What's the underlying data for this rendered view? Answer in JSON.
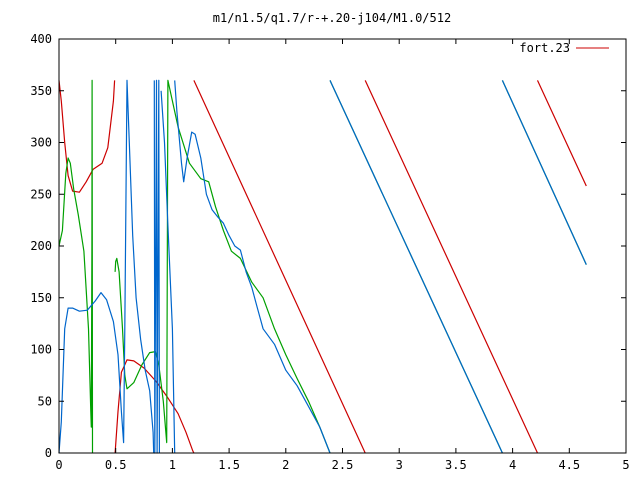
{
  "chart_data": {
    "type": "line",
    "title": "m1/n1.5/q1.7/r-+.20-j104/M1.0/512",
    "xlim": [
      0,
      5
    ],
    "ylim": [
      0,
      400
    ],
    "x_ticks": [
      0,
      0.5,
      1,
      1.5,
      2,
      2.5,
      3,
      3.5,
      4,
      4.5,
      5
    ],
    "x_tick_labels": [
      "0",
      "0.5",
      "1",
      "1.5",
      "2",
      "2.5",
      "3",
      "3.5",
      "4",
      "4.5",
      "5"
    ],
    "y_ticks": [
      0,
      50,
      100,
      150,
      200,
      250,
      300,
      350,
      400
    ],
    "y_tick_labels": [
      "0",
      "50",
      "100",
      "150",
      "200",
      "250",
      "300",
      "350",
      "400"
    ],
    "grid": false,
    "legend": {
      "position": "top-right",
      "entries": [
        "fort.23"
      ]
    },
    "series": [
      {
        "name": "fort.23",
        "color": "#cc0000",
        "segments": [
          [
            [
              0.0,
              360
            ],
            [
              0.02,
              340
            ],
            [
              0.05,
              300
            ],
            [
              0.08,
              268
            ],
            [
              0.12,
              253
            ],
            [
              0.18,
              252
            ],
            [
              0.24,
              262
            ],
            [
              0.3,
              274
            ],
            [
              0.38,
              280
            ],
            [
              0.43,
              295
            ],
            [
              0.48,
              340
            ],
            [
              0.49,
              360
            ]
          ],
          [
            [
              0.495,
              0
            ],
            [
              0.52,
              40
            ],
            [
              0.55,
              78
            ],
            [
              0.6,
              90
            ],
            [
              0.66,
              89
            ],
            [
              0.75,
              82
            ],
            [
              0.85,
              70
            ],
            [
              0.95,
              55
            ],
            [
              1.05,
              38
            ],
            [
              1.12,
              20
            ],
            [
              1.18,
              2
            ],
            [
              1.19,
              0
            ]
          ],
          [
            [
              1.19,
              360
            ],
            [
              2.7,
              0
            ]
          ],
          [
            [
              2.7,
              360
            ],
            [
              4.22,
              0
            ]
          ],
          [
            [
              4.22,
              360
            ],
            [
              4.65,
              258
            ]
          ]
        ]
      },
      {
        "color": "#00a000",
        "segments": [
          [
            [
              0.0,
              200
            ],
            [
              0.03,
              215
            ],
            [
              0.06,
              270
            ],
            [
              0.08,
              285
            ],
            [
              0.1,
              280
            ],
            [
              0.13,
              255
            ],
            [
              0.17,
              230
            ],
            [
              0.22,
              195
            ],
            [
              0.26,
              120
            ],
            [
              0.28,
              40
            ],
            [
              0.285,
              25
            ],
            [
              0.29,
              200
            ],
            [
              0.292,
              360
            ],
            [
              0.295,
              0
            ]
          ],
          [
            [
              0.495,
              175
            ],
            [
              0.5,
              185
            ],
            [
              0.51,
              188
            ],
            [
              0.53,
              175
            ],
            [
              0.56,
              120
            ],
            [
              0.58,
              75
            ],
            [
              0.6,
              62
            ],
            [
              0.66,
              68
            ],
            [
              0.73,
              85
            ],
            [
              0.8,
              97
            ],
            [
              0.85,
              98
            ],
            [
              0.88,
              85
            ],
            [
              0.92,
              50
            ],
            [
              0.95,
              10
            ],
            [
              0.96,
              360
            ],
            [
              1.05,
              315
            ],
            [
              1.15,
              280
            ],
            [
              1.25,
              265
            ],
            [
              1.32,
              262
            ],
            [
              1.38,
              238
            ],
            [
              1.45,
              215
            ],
            [
              1.52,
              195
            ],
            [
              1.6,
              188
            ],
            [
              1.7,
              165
            ],
            [
              1.8,
              150
            ],
            [
              1.9,
              120
            ],
            [
              2.0,
              95
            ],
            [
              2.1,
              72
            ],
            [
              2.2,
              50
            ],
            [
              2.3,
              25
            ],
            [
              2.39,
              0
            ]
          ],
          [
            [
              2.39,
              360
            ],
            [
              3.91,
              0
            ]
          ],
          [
            [
              3.91,
              360
            ],
            [
              4.65,
              182
            ]
          ]
        ]
      },
      {
        "color": "#0066cc",
        "segments": [
          [
            [
              0.0,
              0
            ],
            [
              0.02,
              30
            ],
            [
              0.05,
              120
            ],
            [
              0.08,
              140
            ],
            [
              0.12,
              140
            ],
            [
              0.18,
              137
            ],
            [
              0.25,
              138
            ],
            [
              0.32,
              147
            ],
            [
              0.37,
              155
            ],
            [
              0.42,
              148
            ],
            [
              0.48,
              127
            ],
            [
              0.52,
              95
            ],
            [
              0.55,
              40
            ],
            [
              0.57,
              10
            ],
            [
              0.58,
              120
            ],
            [
              0.6,
              360
            ],
            [
              0.62,
              300
            ],
            [
              0.65,
              210
            ],
            [
              0.68,
              150
            ],
            [
              0.72,
              110
            ],
            [
              0.76,
              80
            ],
            [
              0.8,
              60
            ],
            [
              0.83,
              20
            ],
            [
              0.835,
              0
            ]
          ],
          [
            [
              0.84,
              360
            ],
            [
              0.845,
              0
            ],
            [
              0.86,
              360
            ],
            [
              0.865,
              0
            ],
            [
              0.88,
              360
            ],
            [
              0.885,
              0
            ]
          ],
          [
            [
              0.9,
              350
            ],
            [
              0.93,
              300
            ],
            [
              0.96,
              220
            ],
            [
              1.0,
              120
            ],
            [
              1.02,
              0
            ]
          ],
          [
            [
              1.02,
              360
            ],
            [
              1.04,
              330
            ],
            [
              1.08,
              280
            ],
            [
              1.1,
              262
            ],
            [
              1.13,
              285
            ],
            [
              1.17,
              310
            ],
            [
              1.2,
              308
            ],
            [
              1.25,
              285
            ],
            [
              1.3,
              250
            ],
            [
              1.35,
              235
            ],
            [
              1.4,
              228
            ],
            [
              1.45,
              222
            ],
            [
              1.5,
              210
            ],
            [
              1.55,
              200
            ],
            [
              1.6,
              196
            ],
            [
              1.65,
              175
            ],
            [
              1.7,
              160
            ],
            [
              1.75,
              140
            ],
            [
              1.8,
              120
            ],
            [
              1.9,
              105
            ],
            [
              2.0,
              80
            ],
            [
              2.1,
              65
            ],
            [
              2.2,
              45
            ],
            [
              2.3,
              25
            ],
            [
              2.39,
              0
            ]
          ],
          [
            [
              2.39,
              360
            ],
            [
              3.91,
              0
            ]
          ],
          [
            [
              3.91,
              360
            ],
            [
              4.65,
              182
            ]
          ]
        ]
      }
    ]
  }
}
